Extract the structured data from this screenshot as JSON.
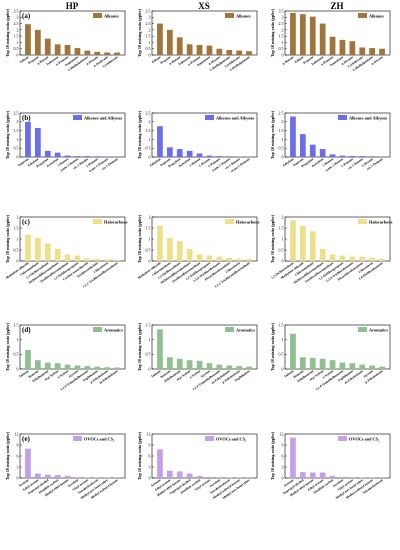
{
  "columns": [
    "HP",
    "XS",
    "ZH"
  ],
  "ylabel": "Top 10 mixing ratio (ppbv)",
  "rows": [
    {
      "letter": "(a)",
      "legend": "Alkanes",
      "color": "#a0743b",
      "ymax": 3.5,
      "ticks": [
        0,
        0.5,
        1.0,
        1.5,
        2.0,
        2.5,
        3.0,
        3.5
      ],
      "panels": [
        {
          "categories": [
            "Ethane",
            "Propane",
            "n-Butane",
            "Isobutane",
            "n-Pentane",
            "Isopentane",
            "2-Methylpentane",
            "n-Hexane",
            "n-Dodecane",
            "Cyclohexane"
          ],
          "values": [
            2.45,
            2.0,
            1.3,
            0.85,
            0.8,
            0.55,
            0.35,
            0.25,
            0.2,
            0.2
          ]
        },
        {
          "categories": [
            "Ethane",
            "Propane",
            "n-Butane",
            "Isobutane",
            "n-Pentane",
            "Isopentane",
            "n-Hexane",
            "2-Methylpentane",
            "Cyclohexane",
            "3-Methylpentane"
          ],
          "values": [
            2.5,
            2.0,
            1.4,
            0.85,
            0.8,
            0.75,
            0.5,
            0.4,
            0.35,
            0.3
          ]
        },
        {
          "categories": [
            "n-Butane",
            "Ethane",
            "Propane",
            "Isobutane",
            "n-Pentane",
            "Isopentane",
            "n-Hexane",
            "Cyclohexane",
            "2-Methylpentane",
            "n-Decane"
          ],
          "values": [
            3.35,
            3.25,
            3.05,
            2.5,
            1.45,
            1.2,
            1.1,
            0.6,
            0.55,
            0.5
          ]
        }
      ]
    },
    {
      "letter": "(b)",
      "legend": "Alkenes and Alkynes",
      "color": "#6b6ee8",
      "ymax": 2.5,
      "ticks": [
        0,
        0.5,
        1.0,
        1.5,
        2.0,
        2.5
      ],
      "panels": [
        {
          "categories": [
            "Isoprene",
            "Ethylene",
            "Propylene",
            "Acetylene",
            "1-Butene",
            "trans-2-Butene",
            "cis-2-Butene",
            "1-Pentene",
            "trans-2-Pentene",
            "cis-2-Pentene"
          ],
          "values": [
            2.0,
            1.65,
            0.35,
            0.25,
            0.08,
            0.05,
            0.05,
            0.04,
            0.03,
            0.03
          ]
        },
        {
          "categories": [
            "Ethylene",
            "Isoprene",
            "Propylene",
            "Acetylene",
            "1-Butene",
            "1-Hexene",
            "1-Pentene",
            "trans-2-Butene",
            "cis-2-Butene",
            "trans-2-Pentene"
          ],
          "values": [
            1.75,
            0.55,
            0.45,
            0.35,
            0.2,
            0.08,
            0.05,
            0.04,
            0.03,
            0.03
          ]
        },
        {
          "categories": [
            "Ethylene",
            "Isoprene",
            "Propylene",
            "Acetylene",
            "1-Butene",
            "trans-2-Butene",
            "1-Pentene",
            "cis-2-Butene",
            "1-Hexene",
            "cis-2-Pentene"
          ],
          "values": [
            2.3,
            1.3,
            0.7,
            0.45,
            0.15,
            0.08,
            0.06,
            0.05,
            0.04,
            0.03
          ]
        }
      ]
    },
    {
      "letter": "(c)",
      "legend": "Halocarbons",
      "color": "#ede08a",
      "ymax": 2.0,
      "ticks": [
        0,
        0.5,
        1.0,
        1.5,
        2.0
      ],
      "panels": [
        {
          "categories": [
            "Methylene chloride",
            "Chloromethane",
            "1,2-Dichloroethane",
            "Dichlorodifluoromethane",
            "Trichlorofluoromethane",
            "1,2-Dichloropropane",
            "Carbon tetrachloride",
            "Trichloroethylene",
            "Chloroform",
            "1,1,2-Trichlorotrifluoroethane"
          ],
          "values": [
            1.2,
            1.05,
            0.8,
            0.55,
            0.3,
            0.25,
            0.12,
            0.1,
            0.08,
            0.06
          ]
        },
        {
          "categories": [
            "Methylene chloride",
            "Chloromethane",
            "1,2-Dichloroethane",
            "Dichlorodifluoromethane",
            "Trichlorofluoromethane",
            "1,2-Dichloropropane",
            "1,2,4-Trichlorobenzene",
            "Hexachlorobutadiene",
            "Chloroform",
            "1,1,2-Trichlorotrifluoroethane"
          ],
          "values": [
            1.6,
            1.05,
            0.9,
            0.55,
            0.3,
            0.25,
            0.2,
            0.15,
            0.1,
            0.1
          ]
        },
        {
          "categories": [
            "1,2-Dichloroethane",
            "Methylene chloride",
            "Chloromethane",
            "Dichlorodifluoromethane",
            "Trichlorofluoromethane",
            "1,2-Dichloropropane",
            "1,2,4-Trichlorobenzene",
            "Hexachlorobutadiene",
            "Chloroform",
            "1,4-Dichlorobenzene"
          ],
          "values": [
            1.85,
            1.6,
            1.35,
            0.55,
            0.3,
            0.25,
            0.2,
            0.18,
            0.15,
            0.1
          ]
        }
      ]
    },
    {
      "letter": "(d)",
      "legend": "Aromatics",
      "color": "#8fc08f",
      "ymax": 1.5,
      "ticks": [
        0,
        0.5,
        1.0,
        1.5
      ],
      "panels": [
        {
          "categories": [
            "Toluene",
            "Benzene",
            "Ethylbenzene",
            "m,p-Xylene",
            "o-Xylene",
            "Styrene",
            "1,2,4-Trimethylbenzene",
            "Naphthalene",
            "p-Ethyltoluene",
            "m-Ethyltoluene"
          ],
          "values": [
            0.65,
            0.3,
            0.22,
            0.2,
            0.15,
            0.12,
            0.1,
            0.08,
            0.06,
            0.05
          ]
        },
        {
          "categories": [
            "Toluene",
            "Benzene",
            "Ethylbenzene",
            "m,p-Xylene",
            "o-Xylene",
            "Styrene",
            "1,2,4-Trimethylbenzene",
            "m-Ethyltoluene",
            "p-Ethyltoluene",
            "Naphthalene"
          ],
          "values": [
            1.35,
            0.4,
            0.35,
            0.3,
            0.28,
            0.2,
            0.15,
            0.12,
            0.1,
            0.08
          ]
        },
        {
          "categories": [
            "Toluene",
            "Benzene",
            "Ethylbenzene",
            "m,p-Xylene",
            "o-Xylene",
            "1,2,4-Trimethylbenzene",
            "Naphthalene",
            "m-Ethyltoluene",
            "Styrene",
            "p-Ethyltoluene"
          ],
          "values": [
            1.2,
            0.4,
            0.38,
            0.35,
            0.3,
            0.22,
            0.2,
            0.15,
            0.12,
            0.08
          ]
        }
      ]
    },
    {
      "letter": "(e)",
      "legend": "OVOCs and CS₂",
      "color": "#c3a0e8",
      "ymax": 12,
      "ticks": [
        0,
        3,
        6,
        9,
        12
      ],
      "panels": [
        {
          "categories": [
            "Acetone",
            "Ethyl acetate",
            "Isopropyl alcohol",
            "Disulfide carbon",
            "Methyl ethyl ketone",
            "Acrolein",
            "Vinyl acetate",
            "Tetrahydrofuran",
            "Methyl tert-butyl ether",
            "Methyl isobutyl ketone"
          ],
          "values": [
            8.0,
            1.2,
            0.9,
            0.8,
            0.6,
            0.2,
            0.15,
            0.1,
            0.1,
            0.08
          ]
        },
        {
          "categories": [
            "Acetone",
            "Ethyl acetate",
            "Methyl ethyl ketone",
            "Isopropyl alcohol",
            "Disulfide carbon",
            "Vinyl acetate",
            "Acrolein",
            "Tetrahydrofuran",
            "Methyl isobutyl ketone",
            "Methyl tert-butyl ether"
          ],
          "values": [
            7.8,
            2.0,
            1.8,
            1.2,
            0.6,
            0.3,
            0.2,
            0.15,
            0.1,
            0.08
          ]
        },
        {
          "categories": [
            "Acetone",
            "Isopropyl alcohol",
            "Methyl ethyl ketone",
            "Ethyl acetate",
            "Disulfide carbon",
            "Acrolein",
            "Vinyl acetate",
            "Methyl tert-butyl ether",
            "Methyl isobutyl ketone",
            "Tetrahydrofuran"
          ],
          "values": [
            11.0,
            1.6,
            1.5,
            1.5,
            0.6,
            0.3,
            0.2,
            0.15,
            0.1,
            0.08
          ]
        }
      ]
    }
  ]
}
